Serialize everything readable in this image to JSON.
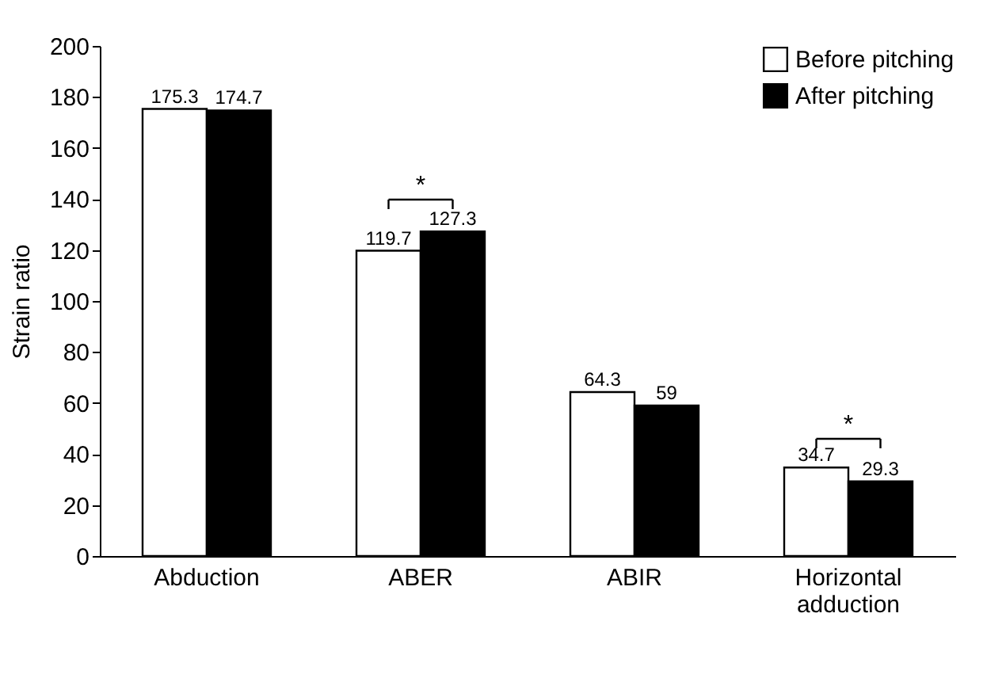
{
  "chart_data": {
    "type": "bar",
    "ylabel": "Strain ratio",
    "categories": [
      "Abduction",
      "ABER",
      "ABIR",
      "Horizontal adduction"
    ],
    "series": [
      {
        "name": "Before pitching",
        "color": "#ffffff",
        "values": [
          175.3,
          119.7,
          64.3,
          34.7
        ]
      },
      {
        "name": "After pitching",
        "color": "#000000",
        "values": [
          174.7,
          127.3,
          59,
          29.3
        ]
      }
    ],
    "ylim": [
      0,
      200
    ],
    "yticks": [
      0,
      20,
      40,
      60,
      80,
      100,
      120,
      140,
      160,
      180,
      200
    ],
    "grid": false,
    "legend": "top right",
    "data_labels": true,
    "annotations": [
      "*",
      "*"
    ]
  }
}
